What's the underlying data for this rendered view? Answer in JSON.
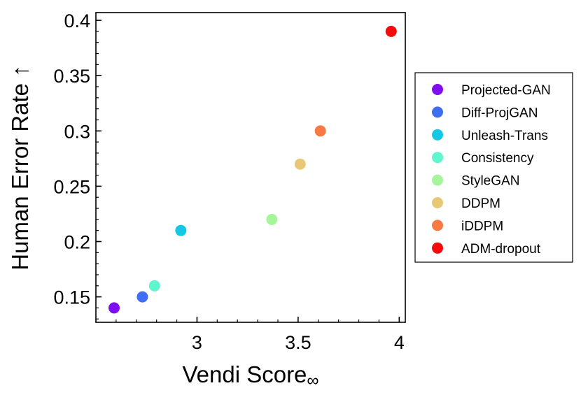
{
  "chart_data": {
    "type": "scatter",
    "xlabel": "Vendi Score",
    "xlabel_subscript": "∞",
    "ylabel": "Human Error Rate ↑",
    "xlim": [
      2.5,
      4.03
    ],
    "ylim": [
      0.127,
      0.407
    ],
    "x_ticks": [
      3,
      3.5,
      4
    ],
    "y_ticks": [
      0.15,
      0.2,
      0.25,
      0.3,
      0.35,
      0.4
    ],
    "x_tick_labels": [
      "3",
      "3.5",
      "4"
    ],
    "y_tick_labels": [
      "0.15",
      "0.2",
      "0.25",
      "0.3",
      "0.35",
      "0.4"
    ],
    "x_minor_step": 0.1,
    "y_minor_step": 0.01,
    "grid": false,
    "legend_position": "right",
    "series": [
      {
        "name": "Projected-GAN",
        "color": "#7f0ff0",
        "x": 2.59,
        "y": 0.14
      },
      {
        "name": "Diff-ProjGAN",
        "color": "#3f6ef2",
        "x": 2.73,
        "y": 0.15
      },
      {
        "name": "Unleash-Trans",
        "color": "#12c8e4",
        "x": 2.92,
        "y": 0.21
      },
      {
        "name": "Consistency",
        "color": "#5ef5cf",
        "x": 2.79,
        "y": 0.16
      },
      {
        "name": "StyleGAN",
        "color": "#a6f59a",
        "x": 3.37,
        "y": 0.22
      },
      {
        "name": "DDPM",
        "color": "#e8c876",
        "x": 3.51,
        "y": 0.27
      },
      {
        "name": "iDDPM",
        "color": "#f77a45",
        "x": 3.61,
        "y": 0.3
      },
      {
        "name": "ADM-dropout",
        "color": "#f50b0b",
        "x": 3.96,
        "y": 0.39
      }
    ]
  }
}
